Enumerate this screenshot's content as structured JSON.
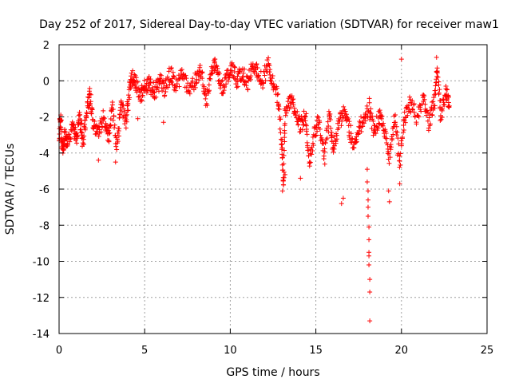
{
  "chart_data": {
    "type": "scatter",
    "title": "Day 252 of 2017, Sidereal Day-to-day VTEC variation (SDTVAR) for receiver maw1",
    "xlabel": "GPS time / hours",
    "ylabel": "SDTVAR / TECUs",
    "xlim": [
      0,
      25
    ],
    "ylim": [
      -14,
      2
    ],
    "xticks": [
      0,
      5,
      10,
      15,
      20,
      25
    ],
    "yticks": [
      -14,
      -12,
      -10,
      -8,
      -6,
      -4,
      -2,
      0,
      2
    ],
    "grid": true,
    "marker": "+",
    "color": "#ff0000",
    "series": [
      {
        "name": "SDTVAR",
        "anchors": [
          [
            0.0,
            -3.0
          ],
          [
            0.1,
            -2.2
          ],
          [
            0.2,
            -3.8
          ],
          [
            0.35,
            -2.8
          ],
          [
            0.5,
            -3.6
          ],
          [
            0.8,
            -2.5
          ],
          [
            1.0,
            -3.2
          ],
          [
            1.2,
            -2.0
          ],
          [
            1.4,
            -3.5
          ],
          [
            1.6,
            -1.8
          ],
          [
            1.8,
            -0.8
          ],
          [
            2.0,
            -2.5
          ],
          [
            2.3,
            -2.8
          ],
          [
            2.6,
            -2.0
          ],
          [
            2.9,
            -3.2
          ],
          [
            3.1,
            -1.5
          ],
          [
            3.4,
            -3.8
          ],
          [
            3.6,
            -1.2
          ],
          [
            3.9,
            -2.2
          ],
          [
            4.1,
            -0.5
          ],
          [
            4.3,
            0.2
          ],
          [
            4.5,
            -0.3
          ],
          [
            4.8,
            -0.8
          ],
          [
            5.0,
            -0.4
          ],
          [
            5.3,
            -0.2
          ],
          [
            5.6,
            -0.6
          ],
          [
            5.9,
            0.0
          ],
          [
            6.2,
            -0.5
          ],
          [
            6.5,
            0.4
          ],
          [
            6.8,
            -0.2
          ],
          [
            7.2,
            0.3
          ],
          [
            7.6,
            -0.6
          ],
          [
            8.0,
            0.1
          ],
          [
            8.3,
            0.6
          ],
          [
            8.6,
            -1.2
          ],
          [
            8.9,
            0.8
          ],
          [
            9.2,
            0.9
          ],
          [
            9.5,
            -0.4
          ],
          [
            9.8,
            0.2
          ],
          [
            10.1,
            0.6
          ],
          [
            10.4,
            0.0
          ],
          [
            10.7,
            0.5
          ],
          [
            11.0,
            -0.2
          ],
          [
            11.3,
            0.8
          ],
          [
            11.6,
            0.4
          ],
          [
            11.9,
            0.0
          ],
          [
            12.2,
            0.9
          ],
          [
            12.5,
            -0.2
          ],
          [
            12.8,
            -1.0
          ],
          [
            13.0,
            -3.5
          ],
          [
            13.1,
            -6.0
          ],
          [
            13.2,
            -2.0
          ],
          [
            13.5,
            -1.0
          ],
          [
            13.8,
            -1.6
          ],
          [
            14.1,
            -2.6
          ],
          [
            14.4,
            -1.8
          ],
          [
            14.6,
            -4.6
          ],
          [
            14.9,
            -3.0
          ],
          [
            15.2,
            -2.2
          ],
          [
            15.5,
            -4.2
          ],
          [
            15.8,
            -1.8
          ],
          [
            16.0,
            -3.8
          ],
          [
            16.3,
            -2.6
          ],
          [
            16.6,
            -1.6
          ],
          [
            16.9,
            -2.4
          ],
          [
            17.2,
            -3.6
          ],
          [
            17.5,
            -2.6
          ],
          [
            17.8,
            -2.2
          ],
          [
            18.1,
            -1.4
          ],
          [
            18.4,
            -2.8
          ],
          [
            18.7,
            -2.0
          ],
          [
            19.0,
            -2.6
          ],
          [
            19.3,
            -4.2
          ],
          [
            19.6,
            -2.0
          ],
          [
            19.9,
            -4.6
          ],
          [
            20.2,
            -2.0
          ],
          [
            20.5,
            -1.2
          ],
          [
            20.9,
            -2.0
          ],
          [
            21.3,
            -1.0
          ],
          [
            21.6,
            -2.4
          ],
          [
            21.9,
            -1.2
          ],
          [
            22.1,
            0.6
          ],
          [
            22.3,
            -2.0
          ],
          [
            22.6,
            -0.6
          ],
          [
            22.8,
            -1.4
          ]
        ],
        "outliers": [
          [
            18.0,
            -4.9
          ],
          [
            18.0,
            -5.6
          ],
          [
            18.05,
            -6.1
          ],
          [
            18.05,
            -6.6
          ],
          [
            18.05,
            -7.0
          ],
          [
            18.05,
            -7.5
          ],
          [
            18.1,
            -8.1
          ],
          [
            18.1,
            -8.8
          ],
          [
            18.1,
            -9.5
          ],
          [
            18.1,
            -9.7
          ],
          [
            18.1,
            -10.2
          ],
          [
            18.15,
            -11.0
          ],
          [
            18.15,
            -11.7
          ],
          [
            18.15,
            -13.3
          ],
          [
            19.25,
            -6.1
          ],
          [
            19.3,
            -6.7
          ],
          [
            19.9,
            -5.7
          ],
          [
            16.5,
            -6.8
          ],
          [
            16.6,
            -6.5
          ],
          [
            14.1,
            -5.4
          ],
          [
            13.05,
            -6.1
          ],
          [
            13.2,
            -5.2
          ],
          [
            4.6,
            -2.1
          ],
          [
            6.1,
            -2.3
          ],
          [
            2.3,
            -4.4
          ],
          [
            3.3,
            -4.5
          ],
          [
            20.0,
            1.2
          ],
          [
            22.05,
            1.3
          ],
          [
            9.1,
            1.2
          ]
        ]
      }
    ]
  }
}
